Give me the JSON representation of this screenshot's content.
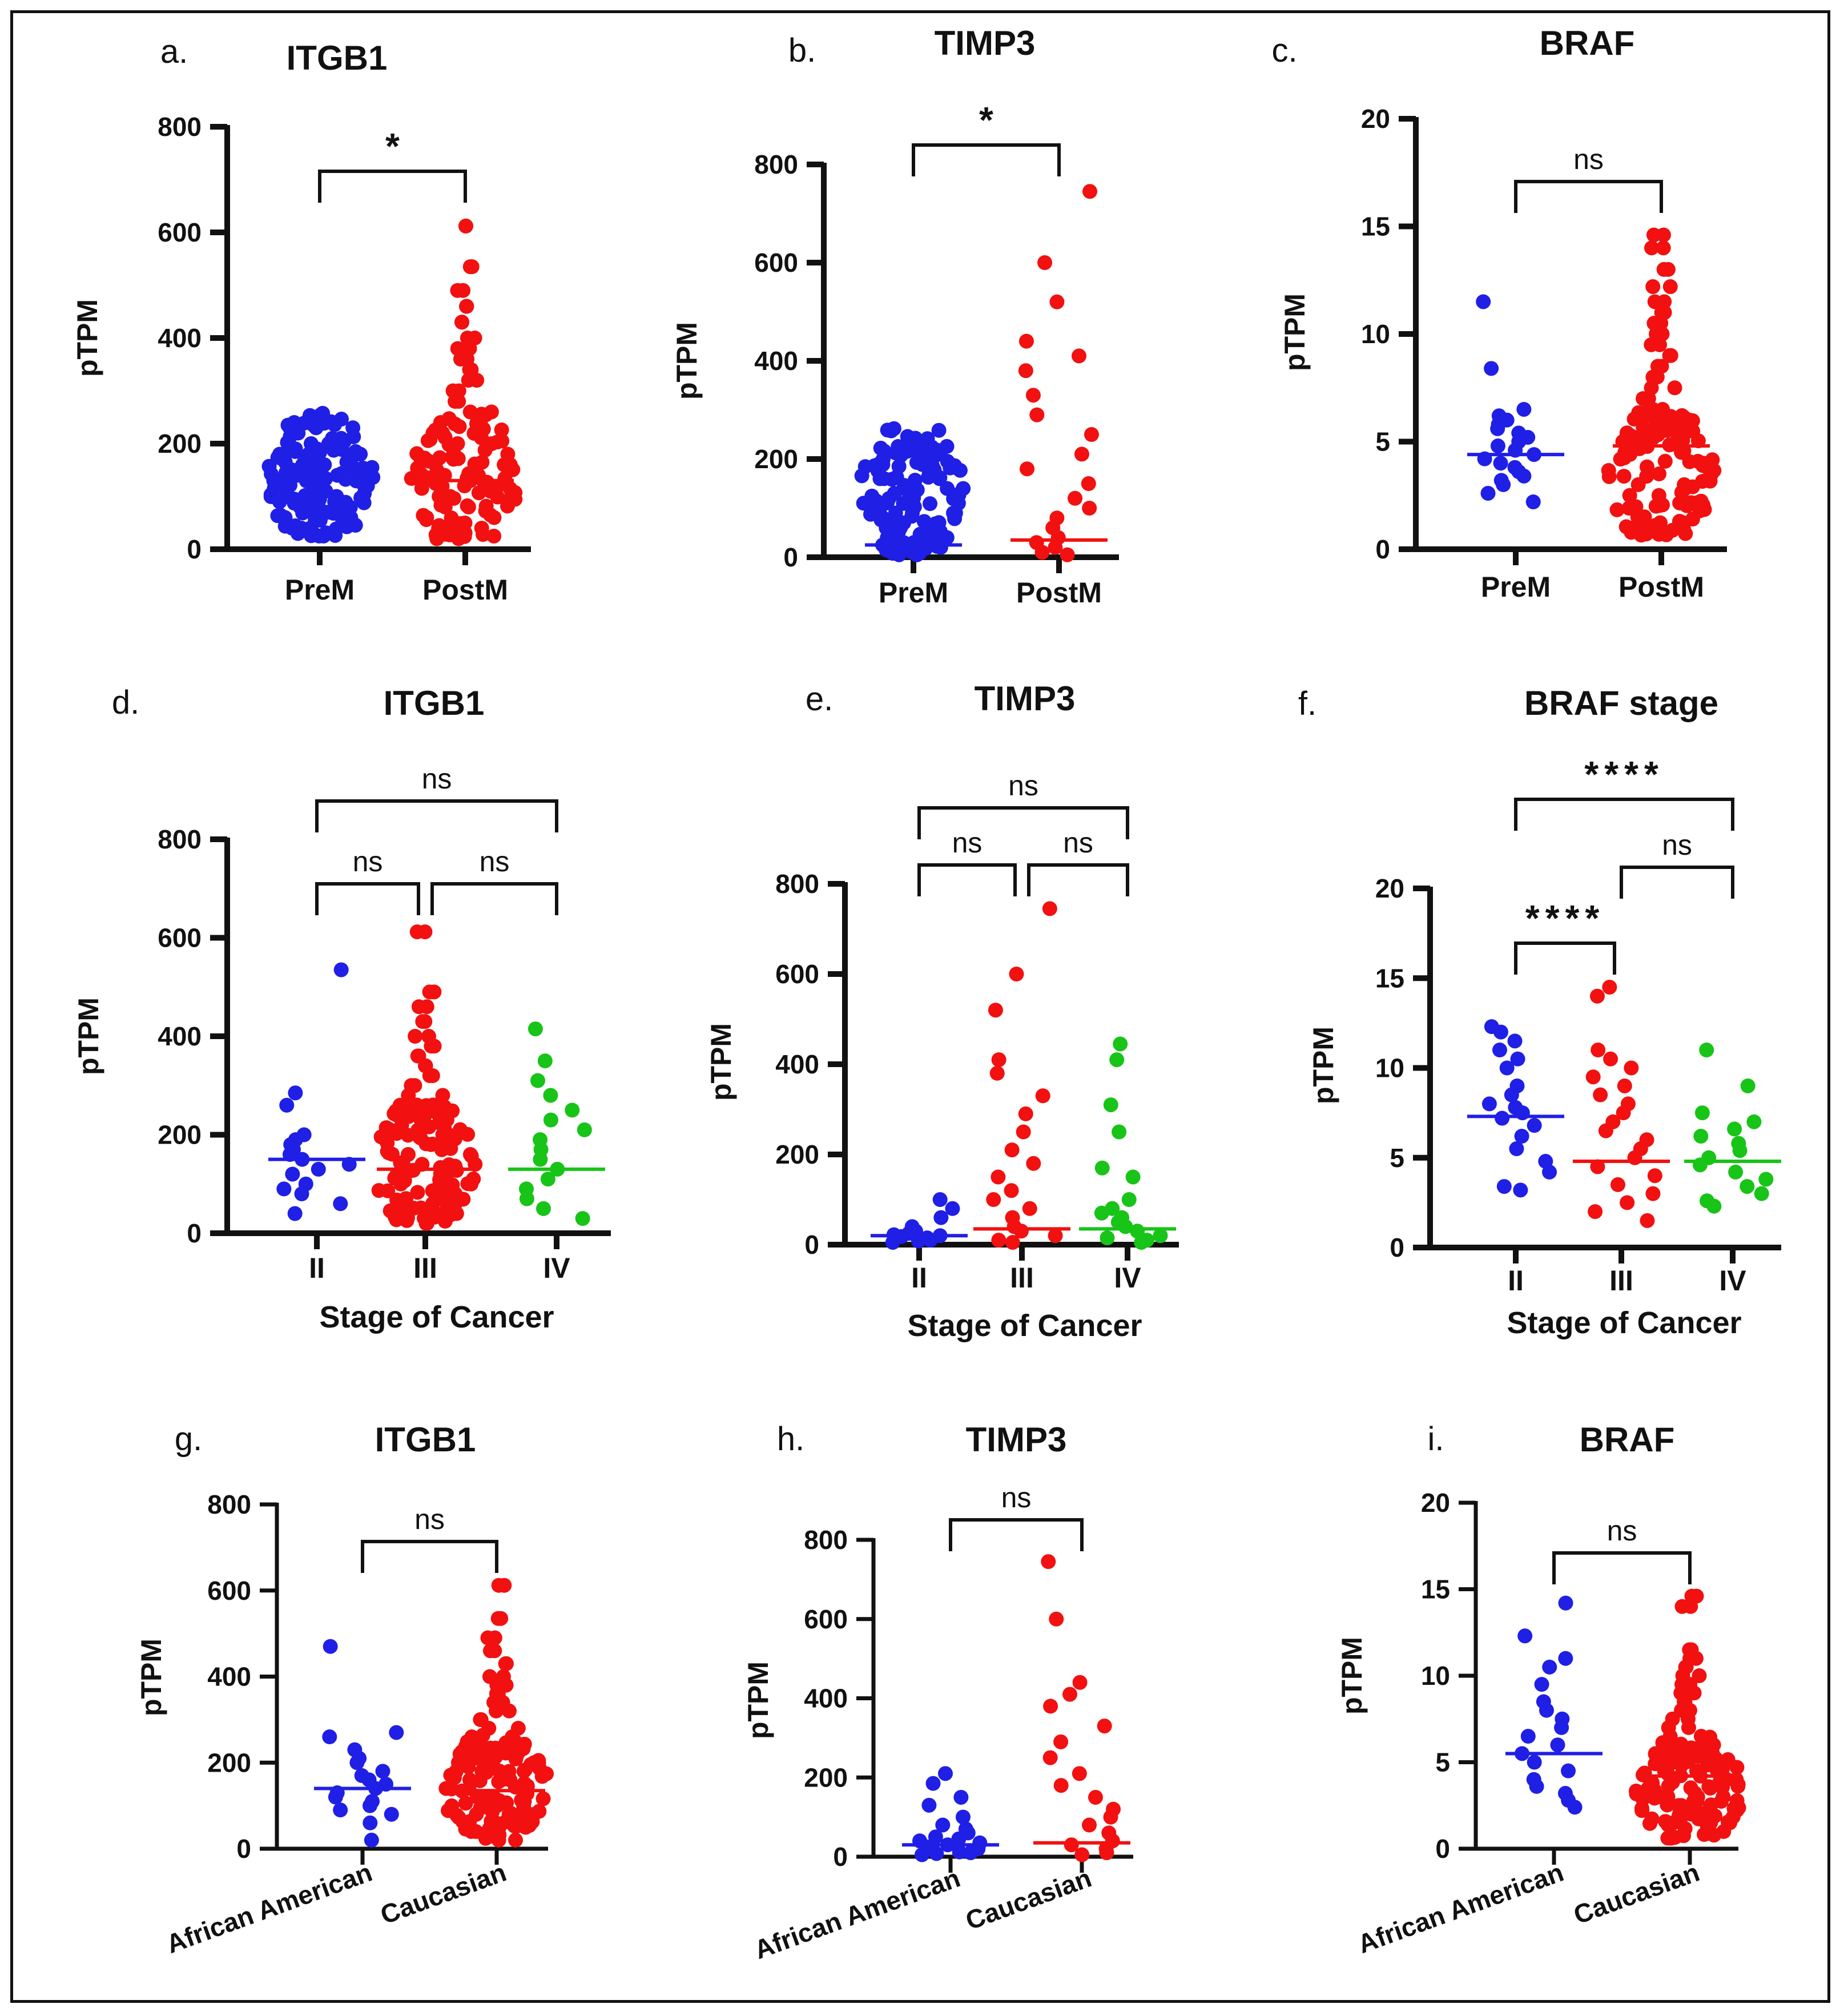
{
  "colors": {
    "blue": "#1f1fe6",
    "red": "#f21010",
    "green": "#17c417",
    "axis": "#111111"
  },
  "chart_data": [
    {
      "id": "a",
      "letter": "a.",
      "title": "ITGB1",
      "type": "scatter",
      "ylabel": "pTPM",
      "xlabel": "",
      "ylim": [
        0,
        800
      ],
      "ticks": [
        "0",
        "200",
        "400",
        "600",
        "800"
      ],
      "categories": [
        "PreM",
        "PostM"
      ],
      "series": [
        {
          "name": "PreM",
          "color": "blue",
          "median": 140,
          "values": [
            25,
            40,
            55,
            60,
            70,
            80,
            90,
            95,
            100,
            110,
            115,
            120,
            125,
            130,
            135,
            140,
            145,
            150,
            160,
            165,
            170,
            180,
            185,
            190,
            200,
            210,
            220,
            230,
            235
          ]
        },
        {
          "name": "PostM",
          "color": "red",
          "median": 130,
          "values": [
            20,
            40,
            60,
            80,
            100,
            120,
            140,
            160,
            180,
            200,
            220,
            240,
            260,
            280,
            300,
            320,
            340,
            360,
            380,
            400,
            430,
            460,
            490,
            535,
            612
          ]
        }
      ],
      "brackets": [
        {
          "from": "PreM",
          "to": "PostM",
          "label": "*"
        }
      ]
    },
    {
      "id": "b",
      "letter": "b.",
      "title": "TIMP3",
      "type": "scatter",
      "ylabel": "pTPM",
      "xlabel": "",
      "ylim": [
        0,
        800
      ],
      "ticks": [
        "0",
        "200",
        "400",
        "600",
        "800"
      ],
      "categories": [
        "PreM",
        "PostM"
      ],
      "series": [
        {
          "name": "PreM",
          "color": "blue",
          "median": 25,
          "values": [
            5,
            8,
            10,
            12,
            15,
            18,
            20,
            22,
            25,
            28,
            30,
            35,
            40,
            45,
            50,
            60,
            70,
            90,
            110,
            130,
            140,
            160,
            185,
            210
          ]
        },
        {
          "name": "PostM",
          "color": "red",
          "median": 35,
          "values": [
            5,
            10,
            20,
            30,
            40,
            60,
            80,
            100,
            120,
            150,
            180,
            210,
            250,
            290,
            330,
            380,
            410,
            440,
            520,
            600,
            745
          ]
        }
      ],
      "brackets": [
        {
          "from": "PreM",
          "to": "PostM",
          "label": "*"
        }
      ]
    },
    {
      "id": "c",
      "letter": "c.",
      "title": "BRAF",
      "type": "scatter",
      "ylabel": "pTPM",
      "xlabel": "",
      "ylim": [
        0,
        20
      ],
      "ticks": [
        "0",
        "5",
        "10",
        "15",
        "20"
      ],
      "categories": [
        "PreM",
        "PostM"
      ],
      "series": [
        {
          "name": "PreM",
          "color": "blue",
          "median": 4.4,
          "values": [
            2.2,
            2.6,
            3.0,
            3.2,
            3.4,
            3.6,
            3.8,
            4.0,
            4.2,
            4.4,
            4.6,
            4.8,
            5.0,
            5.2,
            5.4,
            5.6,
            5.8,
            6.0,
            6.2,
            6.5,
            8.4,
            11.5
          ]
        },
        {
          "name": "PostM",
          "color": "red",
          "median": 4.8,
          "values": [
            1.5,
            2.0,
            2.5,
            3.0,
            3.5,
            4.0,
            4.5,
            5.0,
            5.5,
            6.0,
            6.5,
            7.0,
            7.5,
            8.0,
            8.5,
            9.0,
            9.5,
            10.0,
            10.5,
            11.0,
            11.5,
            12.2,
            13.0,
            14.0,
            14.6
          ]
        }
      ],
      "brackets": [
        {
          "from": "PreM",
          "to": "PostM",
          "label": "ns"
        }
      ]
    },
    {
      "id": "d",
      "letter": "d.",
      "title": "ITGB1",
      "type": "scatter",
      "ylabel": "pTPM",
      "xlabel": "Stage of Cancer",
      "ylim": [
        0,
        800
      ],
      "ticks": [
        "0",
        "200",
        "400",
        "600",
        "800"
      ],
      "categories": [
        "II",
        "III",
        "IV"
      ],
      "series": [
        {
          "name": "II",
          "color": "blue",
          "median": 150,
          "values": [
            40,
            60,
            80,
            90,
            100,
            120,
            130,
            140,
            150,
            160,
            170,
            180,
            190,
            200,
            260,
            285,
            535
          ]
        },
        {
          "name": "III",
          "color": "red",
          "median": 130,
          "values": [
            20,
            40,
            60,
            80,
            100,
            120,
            140,
            160,
            180,
            200,
            220,
            240,
            260,
            280,
            300,
            320,
            340,
            360,
            380,
            400,
            430,
            460,
            490,
            612
          ]
        },
        {
          "name": "IV",
          "color": "green",
          "median": 130,
          "values": [
            30,
            50,
            70,
            90,
            110,
            130,
            150,
            170,
            190,
            210,
            230,
            250,
            280,
            310,
            350,
            415
          ]
        }
      ],
      "brackets": [
        {
          "from": "II",
          "to": "III",
          "label": "ns",
          "level": 0
        },
        {
          "from": "III",
          "to": "IV",
          "label": "ns",
          "level": 0
        },
        {
          "from": "II",
          "to": "IV",
          "label": "ns",
          "level": 1
        }
      ]
    },
    {
      "id": "e",
      "letter": "e.",
      "title": "TIMP3",
      "type": "scatter",
      "ylabel": "pTPM",
      "xlabel": "Stage of Cancer",
      "ylim": [
        0,
        800
      ],
      "ticks": [
        "0",
        "200",
        "400",
        "600",
        "800"
      ],
      "categories": [
        "II",
        "III",
        "IV"
      ],
      "series": [
        {
          "name": "II",
          "color": "blue",
          "median": 20,
          "values": [
            5,
            8,
            10,
            12,
            15,
            18,
            20,
            22,
            25,
            28,
            30,
            40,
            60,
            80,
            100
          ]
        },
        {
          "name": "III",
          "color": "red",
          "median": 35,
          "values": [
            5,
            10,
            20,
            30,
            40,
            60,
            80,
            100,
            120,
            150,
            180,
            210,
            250,
            290,
            330,
            380,
            410,
            520,
            600,
            745
          ]
        },
        {
          "name": "IV",
          "color": "green",
          "median": 35,
          "values": [
            5,
            10,
            15,
            20,
            30,
            40,
            50,
            60,
            70,
            80,
            100,
            150,
            170,
            250,
            310,
            410,
            445
          ]
        }
      ],
      "brackets": [
        {
          "from": "II",
          "to": "III",
          "label": "ns",
          "level": 0
        },
        {
          "from": "III",
          "to": "IV",
          "label": "ns",
          "level": 0
        },
        {
          "from": "II",
          "to": "IV",
          "label": "ns",
          "level": 1
        }
      ]
    },
    {
      "id": "f",
      "letter": "f.",
      "title": "BRAF stage",
      "type": "scatter",
      "ylabel": "pTPM",
      "xlabel": "Stage of Cancer",
      "ylim": [
        0,
        20
      ],
      "ticks": [
        "0",
        "5",
        "10",
        "15",
        "20"
      ],
      "categories": [
        "II",
        "III",
        "IV"
      ],
      "series": [
        {
          "name": "II",
          "color": "blue",
          "median": 7.3,
          "values": [
            3.2,
            3.4,
            4.2,
            4.8,
            5.5,
            6.2,
            6.8,
            7.2,
            7.5,
            7.8,
            8.0,
            8.5,
            9.0,
            10.0,
            10.5,
            11.0,
            11.5,
            12.0,
            12.3
          ]
        },
        {
          "name": "III",
          "color": "red",
          "median": 4.8,
          "values": [
            1.5,
            2.0,
            2.5,
            3.0,
            3.5,
            4.0,
            4.5,
            5.0,
            5.5,
            6.0,
            6.5,
            7.0,
            7.5,
            8.0,
            8.5,
            9.0,
            9.5,
            10.0,
            10.5,
            11.0,
            14.0,
            14.5
          ]
        },
        {
          "name": "IV",
          "color": "green",
          "median": 4.8,
          "values": [
            2.3,
            2.6,
            3.0,
            3.4,
            3.8,
            4.2,
            4.6,
            5.0,
            5.4,
            5.8,
            6.2,
            6.6,
            7.0,
            7.5,
            9.0,
            11.0
          ]
        }
      ],
      "brackets": [
        {
          "from": "II",
          "to": "III",
          "label": "****",
          "level": 0
        },
        {
          "from": "III",
          "to": "IV",
          "label": "ns",
          "level": 1
        },
        {
          "from": "II",
          "to": "IV",
          "label": "****",
          "level": 2
        }
      ]
    },
    {
      "id": "g",
      "letter": "g.",
      "title": "ITGB1",
      "type": "scatter",
      "ylabel": "pTPM",
      "xlabel": "",
      "ylim": [
        0,
        800
      ],
      "ticks": [
        "0",
        "200",
        "400",
        "600",
        "800"
      ],
      "categories": [
        "African American",
        "Caucasian"
      ],
      "series": [
        {
          "name": "African American",
          "color": "blue",
          "median": 140,
          "values": [
            20,
            60,
            80,
            90,
            100,
            110,
            120,
            130,
            140,
            150,
            160,
            170,
            180,
            200,
            210,
            230,
            260,
            270,
            470
          ]
        },
        {
          "name": "Caucasian",
          "color": "red",
          "median": 135,
          "values": [
            20,
            40,
            60,
            80,
            100,
            120,
            140,
            160,
            180,
            200,
            220,
            240,
            260,
            280,
            300,
            320,
            340,
            360,
            380,
            400,
            430,
            460,
            490,
            535,
            612
          ]
        }
      ],
      "brackets": [
        {
          "from": "African American",
          "to": "Caucasian",
          "label": "ns"
        }
      ]
    },
    {
      "id": "h",
      "letter": "h.",
      "title": "TIMP3",
      "type": "scatter",
      "ylabel": "pTPM",
      "xlabel": "",
      "ylim": [
        0,
        800
      ],
      "ticks": [
        "0",
        "200",
        "400",
        "600",
        "800"
      ],
      "categories": [
        "African American",
        "Caucasian"
      ],
      "series": [
        {
          "name": "African American",
          "color": "blue",
          "median": 30,
          "values": [
            5,
            8,
            10,
            12,
            15,
            20,
            25,
            30,
            35,
            40,
            45,
            50,
            60,
            70,
            80,
            100,
            130,
            150,
            185,
            210
          ]
        },
        {
          "name": "Caucasian",
          "color": "red",
          "median": 35,
          "values": [
            5,
            10,
            20,
            30,
            40,
            60,
            80,
            100,
            120,
            150,
            180,
            210,
            250,
            290,
            330,
            380,
            410,
            440,
            600,
            745
          ]
        }
      ],
      "brackets": [
        {
          "from": "African American",
          "to": "Caucasian",
          "label": "ns"
        }
      ]
    },
    {
      "id": "i",
      "letter": "i.",
      "title": "BRAF",
      "type": "scatter",
      "ylabel": "pTPM",
      "xlabel": "",
      "ylim": [
        0,
        20
      ],
      "ticks": [
        "0",
        "5",
        "10",
        "15",
        "20"
      ],
      "categories": [
        "African American",
        "Caucasian"
      ],
      "series": [
        {
          "name": "African American",
          "color": "blue",
          "median": 5.5,
          "values": [
            2.4,
            2.8,
            3.2,
            3.6,
            4.0,
            4.5,
            5.0,
            5.5,
            6.0,
            6.5,
            7.0,
            7.5,
            8.0,
            8.5,
            9.5,
            10.5,
            11.0,
            12.3,
            14.2
          ]
        },
        {
          "name": "Caucasian",
          "color": "red",
          "median": 4.2,
          "values": [
            1.5,
            2.0,
            2.5,
            3.0,
            3.5,
            4.0,
            4.5,
            5.0,
            5.5,
            6.0,
            6.5,
            7.0,
            7.5,
            8.0,
            8.5,
            9.0,
            9.5,
            10.0,
            10.5,
            11.0,
            11.5,
            14.0,
            14.6
          ]
        }
      ],
      "brackets": [
        {
          "from": "African American",
          "to": "Caucasian",
          "label": "ns"
        }
      ]
    }
  ]
}
